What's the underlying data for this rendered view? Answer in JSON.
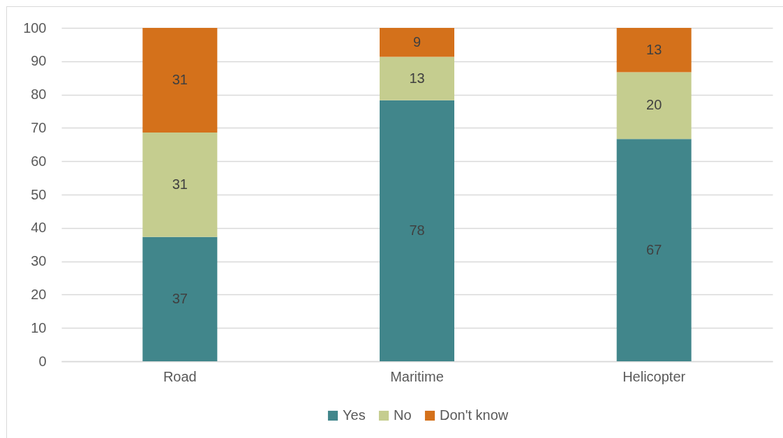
{
  "chart_data": {
    "type": "bar",
    "categories": [
      "Road",
      "Maritime",
      "Helicopter"
    ],
    "stacked": true,
    "series": [
      {
        "name": "Yes",
        "color": "#41868b",
        "values": [
          37.3,
          78.3,
          66.7
        ],
        "value_labels": [
          "37",
          "78",
          "67"
        ]
      },
      {
        "name": "No",
        "color": "#c5cd8f",
        "values": [
          31.3,
          13.0,
          20.0
        ],
        "value_labels": [
          "31",
          "13",
          "20"
        ]
      },
      {
        "name": "Don't know",
        "color": "#d4711b",
        "values": [
          31.4,
          8.7,
          13.3
        ],
        "value_labels": [
          "31",
          "9",
          "13"
        ]
      }
    ],
    "ylim": [
      0,
      100
    ],
    "yticks": [
      0,
      10,
      20,
      30,
      40,
      50,
      60,
      70,
      80,
      90,
      100
    ],
    "grid": "y",
    "legend": "bottom"
  }
}
